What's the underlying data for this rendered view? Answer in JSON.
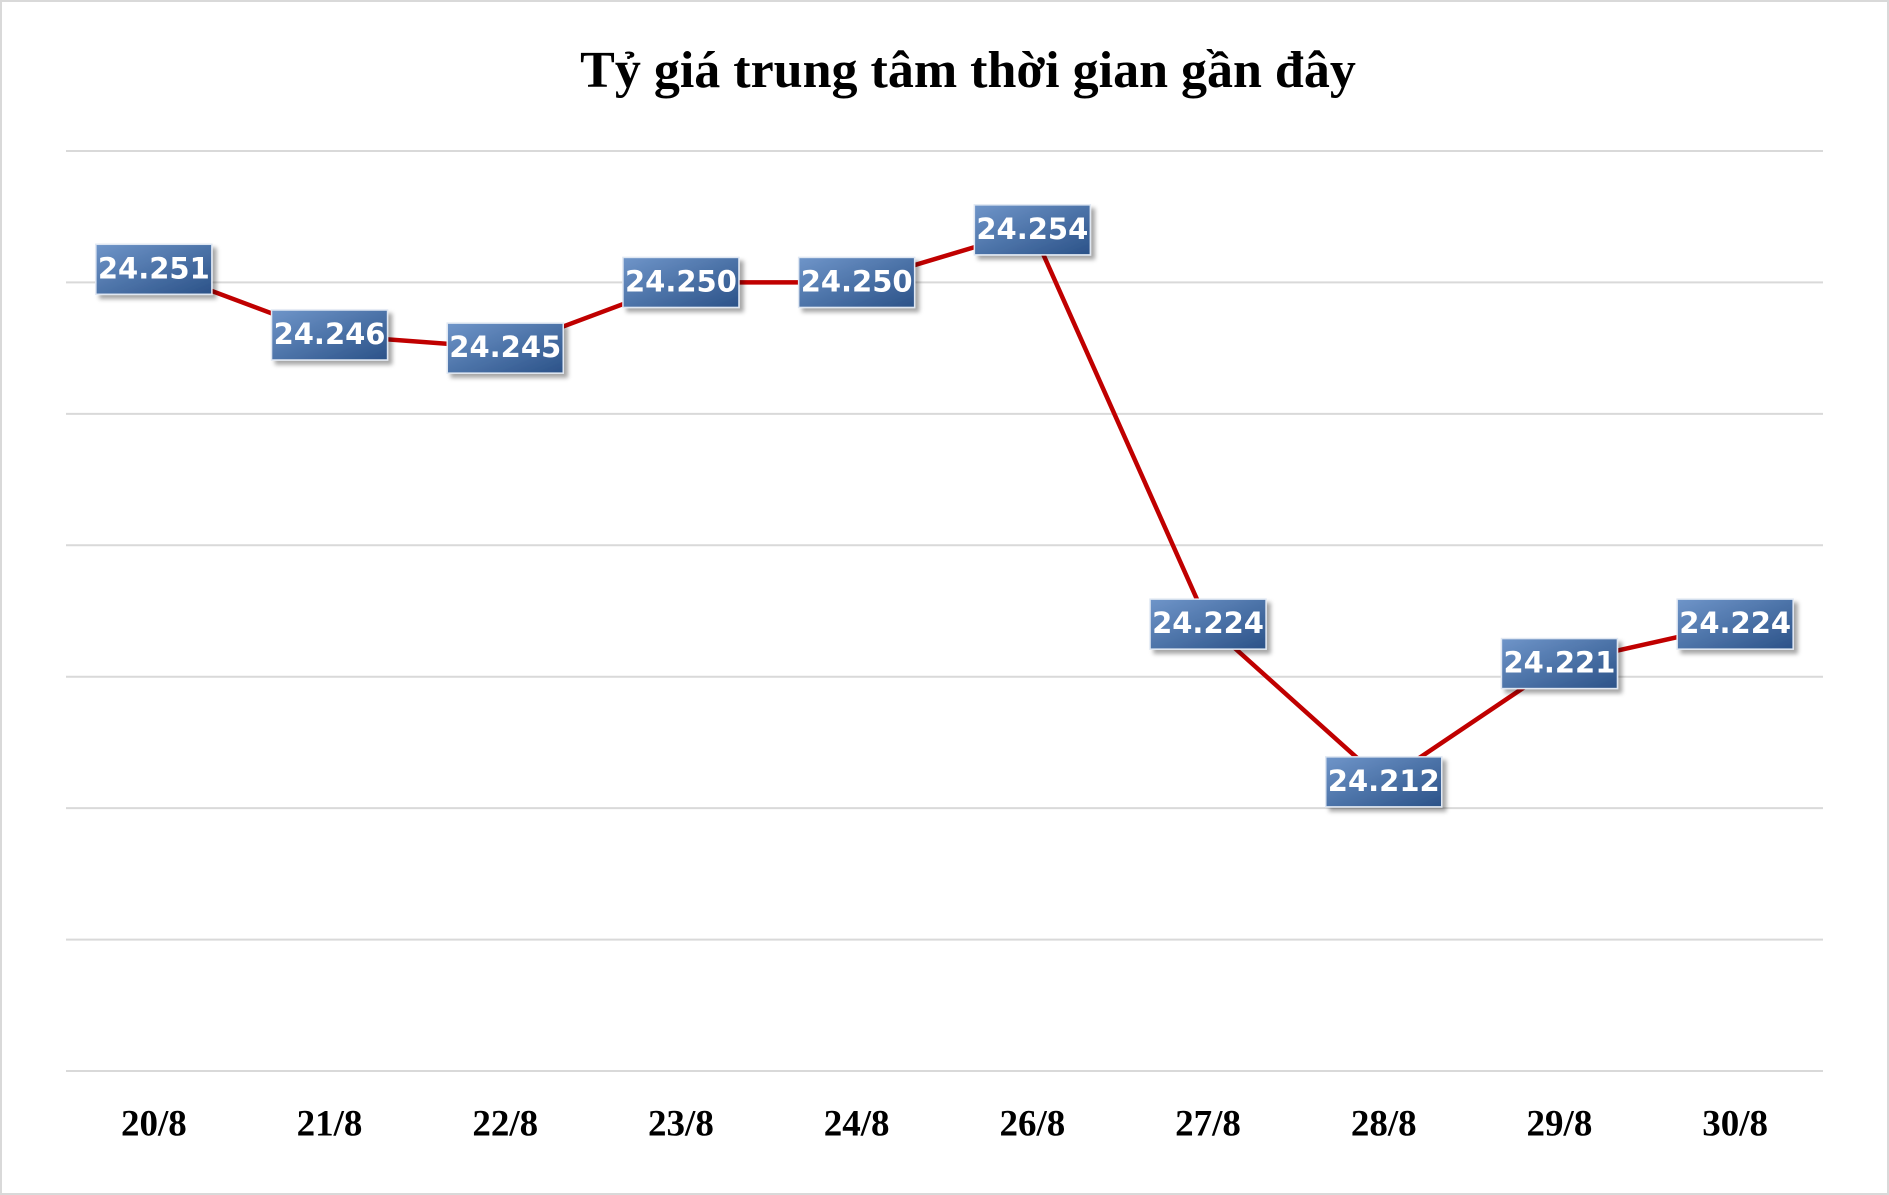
{
  "chart_data": {
    "type": "line",
    "title": "Tỷ giá trung tâm thời gian gần đây",
    "categories": [
      "20/8",
      "21/8",
      "22/8",
      "23/8",
      "24/8",
      "26/8",
      "27/8",
      "28/8",
      "29/8",
      "30/8"
    ],
    "values": [
      24251,
      24246,
      24245,
      24250,
      24250,
      24254,
      24224,
      24212,
      24221,
      24224
    ],
    "value_labels": [
      "24.251",
      "24.246",
      "24.245",
      "24.250",
      "24.250",
      "24.254",
      "24.224",
      "24.212",
      "24.221",
      "24.224"
    ],
    "color": "#c00000",
    "ylim": [
      24190,
      24260
    ],
    "yticks": [
      24190,
      24200,
      24210,
      24220,
      24230,
      24240,
      24250,
      24260
    ],
    "grid": true
  }
}
